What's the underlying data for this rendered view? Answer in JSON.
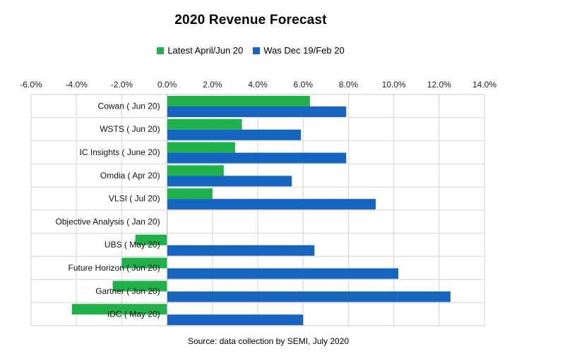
{
  "title": "2020  Revenue Forecast",
  "source": "Source: data collection by SEMI, July 2020",
  "colors": {
    "latest": "#1fb24a",
    "previous": "#1565c0",
    "grid": "#d6d6d6",
    "gridBorder": "#c9c9c9"
  },
  "chart_data": {
    "type": "bar",
    "orientation": "horizontal",
    "categories": [
      "Cowan ( Jun 20)",
      "WSTS ( Jun 20)",
      "IC Insights ( June 20)",
      "Omdia ( Apr 20)",
      "VLSI ( Jul 20)",
      "Objective Analysis ( Jan 20)",
      "UBS ( May 20)",
      "Future Horizon ( Jun 20)",
      "Gartner ( Jun 20)",
      "IDC ( May 20)"
    ],
    "series": [
      {
        "name": "Latest  April/Jun 20",
        "color": "#1fb24a",
        "values": [
          6.3,
          3.3,
          3.0,
          2.5,
          2.0,
          0.0,
          -1.4,
          -2.0,
          -2.4,
          -4.2
        ]
      },
      {
        "name": "Was Dec 19/Feb 20",
        "color": "#1565c0",
        "values": [
          7.9,
          5.9,
          7.9,
          5.5,
          9.2,
          0.0,
          6.5,
          10.2,
          12.5,
          6.0
        ]
      }
    ],
    "xlim": [
      -6,
      14
    ],
    "xticks": [
      "-6.0%",
      "-4.0%",
      "-2.0%",
      "0.0%",
      "2.0%",
      "4.0%",
      "6.0%",
      "8.0%",
      "10.0%",
      "12.0%",
      "14.0%"
    ],
    "grid": true,
    "legend": "top"
  }
}
